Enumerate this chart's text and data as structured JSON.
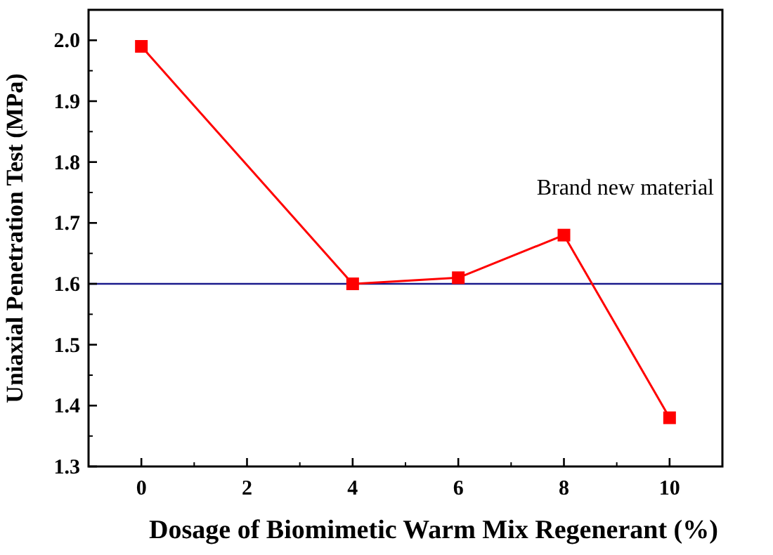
{
  "chart_data": {
    "type": "line",
    "xlabel": "Dosage of Biomimetic Warm Mix Regenerant (%)",
    "ylabel": "Uniaxial Penetration Test (MPa)",
    "x": [
      0,
      4,
      6,
      8,
      10
    ],
    "series": [
      {
        "color": "#ff0000",
        "values": [
          1.99,
          1.6,
          1.61,
          1.68,
          1.38
        ]
      }
    ],
    "xlim": [
      -1,
      11
    ],
    "xticks": [
      0,
      2,
      4,
      6,
      8,
      10
    ],
    "ylim": [
      1.3,
      2.05
    ],
    "yticks": [
      1.3,
      1.4,
      1.5,
      1.6,
      1.7,
      1.8,
      1.9,
      {
        "value": 2,
        "label": "2.0"
      }
    ],
    "ref_lines": [
      {
        "axis": "y",
        "value": 1.6,
        "color": "#1a1a8c"
      }
    ],
    "annotations": [
      "Brand new material"
    ],
    "marker": "square",
    "line_style": "solid",
    "grid": false
  }
}
